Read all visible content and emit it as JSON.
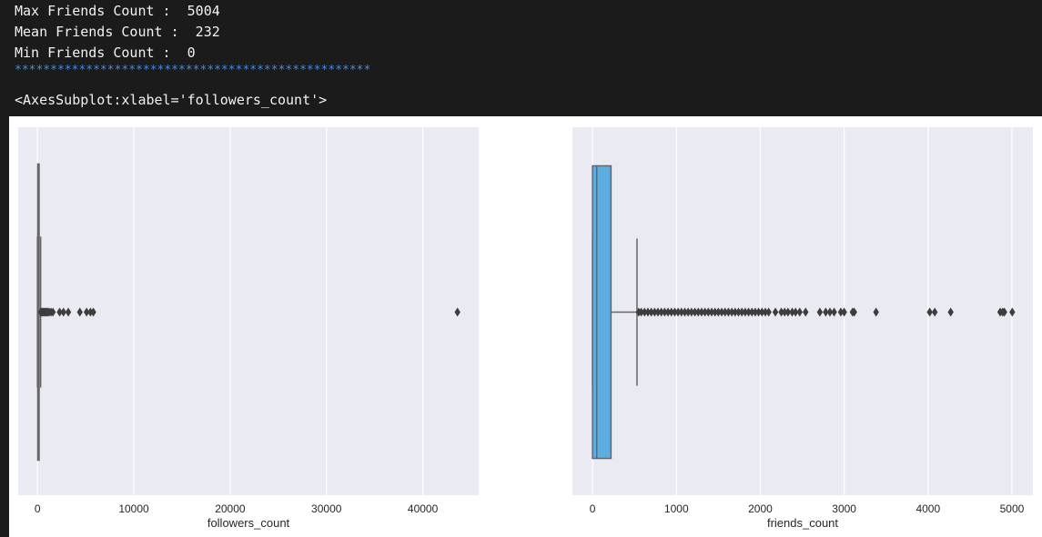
{
  "console": {
    "lines": [
      "Max Friends Count :  5004",
      "Mean Friends Count :  232",
      "Min Friends Count :  0"
    ],
    "separator": "**************************************************",
    "repr": "<AxesSubplot:xlabel='followers_count'>"
  },
  "colors": {
    "plot_bg": "#eaeaf2",
    "grid": "#ffffff",
    "box_fill_right": "#5dade2",
    "box_edge": "#666666",
    "console_bg": "#1b1b1b",
    "console_text": "#f2f2f2",
    "separator": "#3b8eea"
  },
  "chart_data": [
    {
      "type": "box",
      "xlabel": "followers_count",
      "xlim": [
        -2000,
        45800
      ],
      "ticks": [
        0,
        10000,
        20000,
        30000,
        40000
      ],
      "tick_labels": [
        "0",
        "10000",
        "20000",
        "30000",
        "40000"
      ],
      "grid": true,
      "box": {
        "q1": 30,
        "median": 120,
        "q3": 150,
        "whisker_low": 0,
        "whisker_high": 330
      },
      "outliers": [
        350,
        420,
        500,
        600,
        700,
        800,
        900,
        1000,
        1100,
        1200,
        1400,
        1600,
        2300,
        2700,
        3200,
        4400,
        5100,
        5500,
        5800,
        43600
      ]
    },
    {
      "type": "box",
      "xlabel": "friends_count",
      "xlim": [
        -240,
        5250
      ],
      "ticks": [
        0,
        1000,
        2000,
        3000,
        4000,
        5000
      ],
      "tick_labels": [
        "0",
        "1000",
        "2000",
        "3000",
        "4000",
        "5000"
      ],
      "grid": true,
      "box": {
        "q1": 0,
        "median": 50,
        "q3": 220,
        "whisker_low": 0,
        "whisker_high": 530
      },
      "outliers": [
        550,
        580,
        620,
        660,
        700,
        740,
        780,
        820,
        860,
        900,
        940,
        980,
        1020,
        1060,
        1100,
        1140,
        1180,
        1220,
        1260,
        1300,
        1340,
        1380,
        1420,
        1460,
        1500,
        1540,
        1580,
        1620,
        1660,
        1700,
        1740,
        1780,
        1820,
        1860,
        1900,
        1940,
        1980,
        2020,
        2060,
        2100,
        2180,
        2250,
        2290,
        2330,
        2380,
        2420,
        2470,
        2540,
        2710,
        2780,
        2830,
        2880,
        2960,
        3000,
        3100,
        3120,
        3380,
        4020,
        4080,
        4270,
        4860,
        4890,
        4910,
        5004
      ]
    }
  ]
}
